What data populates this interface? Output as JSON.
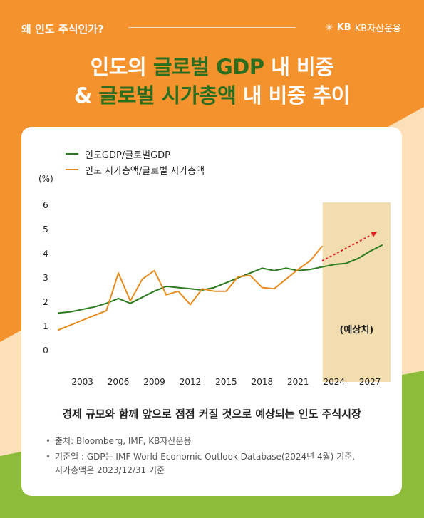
{
  "header": {
    "tag": "왜 인도 주식인가?",
    "brand": "KB자산운용",
    "brand_logo": "KB",
    "brand_icon": "star-icon"
  },
  "title": {
    "line1_a": "인도의 ",
    "line1_b": "글로벌 GDP",
    "line1_c": " 내 비중",
    "line2_a": "& ",
    "line2_b": "글로벌 시가총액",
    "line2_c": " 내 비중 추이"
  },
  "colors": {
    "background_top": "#f4922e",
    "background_mid": "#fde0b8",
    "background_bottom": "#8dbb3a",
    "title_highlight": "#2c6e1f",
    "gdp_series": "#2a7a1e",
    "mcap_series": "#e88b1e",
    "forecast_band": "#f2ddb0",
    "forecast_arrow": "#e02020"
  },
  "chart_data": {
    "type": "line",
    "unit_label": "(%)",
    "ylim": [
      0,
      6
    ],
    "yticks": [
      "0",
      "1",
      "2",
      "3",
      "4",
      "5",
      "6"
    ],
    "xlim": [
      2001,
      2028
    ],
    "xticks": [
      "2003",
      "2006",
      "2009",
      "2012",
      "2015",
      "2018",
      "2021",
      "2024",
      "2027"
    ],
    "grid": false,
    "legend_position": "top-left",
    "series": [
      {
        "name": "인도GDP/글로벌GDP",
        "color": "#2a7a1e",
        "x": [
          2001,
          2002,
          2003,
          2004,
          2005,
          2006,
          2007,
          2008,
          2009,
          2010,
          2011,
          2012,
          2013,
          2014,
          2015,
          2016,
          2017,
          2018,
          2019,
          2020,
          2021,
          2022,
          2023,
          2024,
          2025,
          2026,
          2027,
          2028
        ],
        "values": [
          1.55,
          1.6,
          1.7,
          1.8,
          1.95,
          2.15,
          1.95,
          2.2,
          2.45,
          2.65,
          2.6,
          2.55,
          2.5,
          2.6,
          2.8,
          3.0,
          3.2,
          3.4,
          3.3,
          3.4,
          3.3,
          3.35,
          3.45,
          3.55,
          3.6,
          3.8,
          4.1,
          4.35
        ]
      },
      {
        "name": "인도 시가총액/글로벌 시가총액",
        "color": "#e88b1e",
        "x": [
          2001,
          2002,
          2003,
          2004,
          2005,
          2006,
          2007,
          2008,
          2009,
          2010,
          2011,
          2012,
          2013,
          2014,
          2015,
          2016,
          2017,
          2018,
          2019,
          2020,
          2021,
          2022,
          2023
        ],
        "values": [
          0.85,
          1.05,
          1.25,
          1.45,
          1.65,
          3.2,
          2.05,
          2.95,
          3.3,
          2.3,
          2.45,
          1.9,
          2.55,
          2.45,
          2.45,
          3.05,
          3.1,
          2.6,
          2.55,
          2.95,
          3.35,
          3.7,
          4.3
        ]
      }
    ],
    "forecast": {
      "label": "(예상치)",
      "x_start": 2024,
      "x_end": 2028,
      "arrow_from": [
        2023,
        3.7
      ],
      "arrow_to": [
        2027.6,
        4.9
      ]
    }
  },
  "caption": "경제 규모와 함께 앞으로 점점 커질 것으로 예상되는 인도 주식시장",
  "notes": [
    "출처: Bloomberg, IMF, KB자산운용",
    "기준일 : GDP는 IMF World Economic Outlook Database(2024년 4월) 기준,",
    "시가총액은 2023/12/31 기준"
  ]
}
